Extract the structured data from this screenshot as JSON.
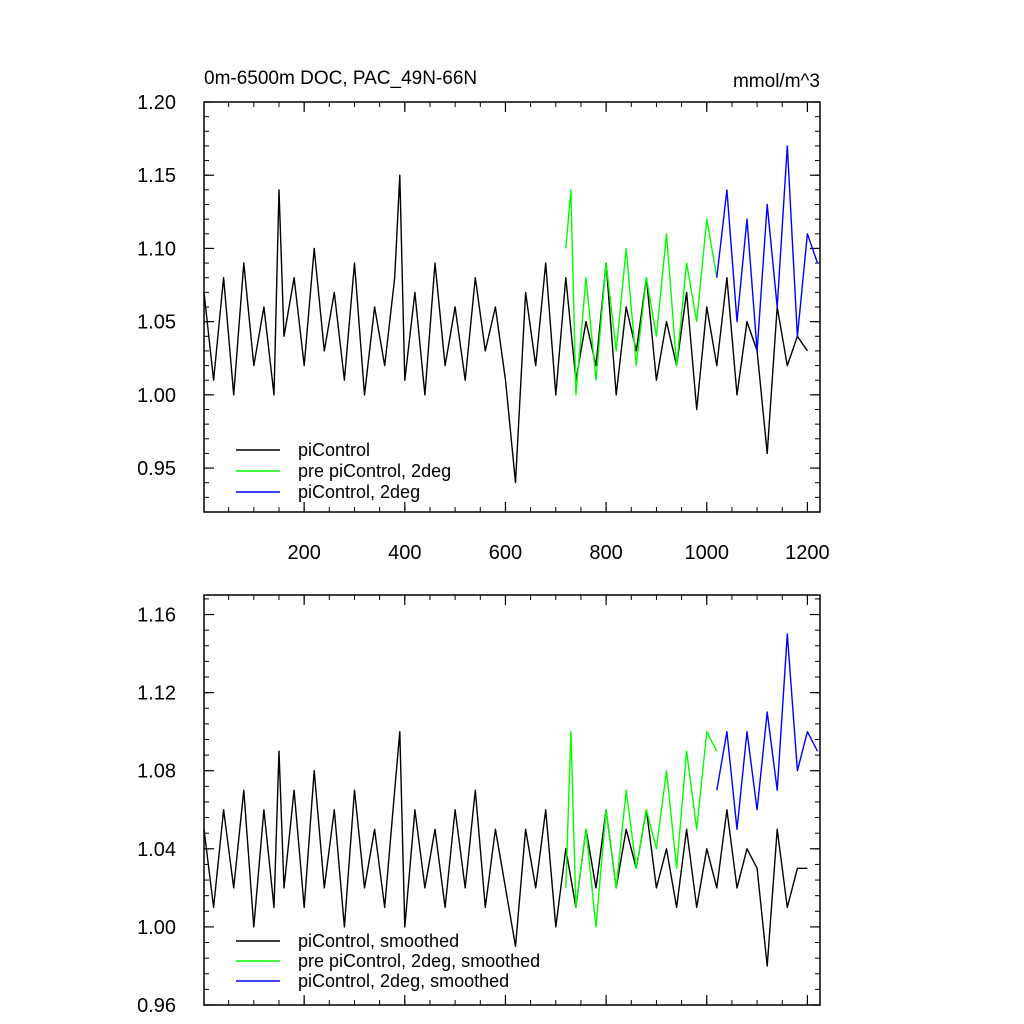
{
  "chart_data": [
    {
      "type": "line",
      "title": "0m-6500m DOC, PAC_49N-66N",
      "units": "mmol/m^3",
      "xlim": [
        1,
        1225
      ],
      "ylim": [
        0.92,
        1.2
      ],
      "xticks": [
        200,
        400,
        600,
        800,
        1000,
        1200
      ],
      "xtick_labels": [
        "200",
        "400",
        "600",
        "800",
        "1000",
        "1200"
      ],
      "yticks": [
        0.95,
        1.0,
        1.05,
        1.1,
        1.15,
        1.2
      ],
      "ytick_labels": [
        "0.95",
        "1.00",
        "1.05",
        "1.10",
        "1.15",
        "1.20"
      ],
      "legend_position": "bottom-left",
      "series": [
        {
          "name": "piControl",
          "color": "#000000",
          "x": [
            1,
            20,
            40,
            60,
            80,
            100,
            120,
            140,
            150,
            160,
            180,
            200,
            220,
            240,
            260,
            280,
            300,
            320,
            340,
            360,
            380,
            390,
            400,
            420,
            440,
            460,
            480,
            500,
            520,
            540,
            560,
            580,
            600,
            620,
            640,
            660,
            680,
            700,
            720,
            740,
            760,
            780,
            800,
            820,
            840,
            860,
            880,
            900,
            920,
            940,
            960,
            980,
            1000,
            1020,
            1040,
            1060,
            1080,
            1100,
            1120,
            1140,
            1160,
            1180,
            1200
          ],
          "y": [
            1.07,
            1.01,
            1.08,
            1.0,
            1.09,
            1.02,
            1.06,
            1.0,
            1.14,
            1.04,
            1.08,
            1.02,
            1.1,
            1.03,
            1.07,
            1.01,
            1.09,
            1.0,
            1.06,
            1.02,
            1.08,
            1.15,
            1.01,
            1.07,
            1.0,
            1.09,
            1.02,
            1.06,
            1.01,
            1.08,
            1.03,
            1.06,
            1.01,
            0.94,
            1.07,
            1.02,
            1.09,
            1.0,
            1.08,
            1.01,
            1.05,
            1.02,
            1.09,
            1.0,
            1.06,
            1.03,
            1.08,
            1.01,
            1.05,
            1.02,
            1.07,
            0.99,
            1.06,
            1.02,
            1.08,
            1.0,
            1.05,
            1.03,
            0.96,
            1.06,
            1.02,
            1.04,
            1.03
          ]
        },
        {
          "name": "pre piControl, 2deg",
          "color": "#00ff00",
          "x": [
            720,
            730,
            740,
            760,
            780,
            800,
            820,
            840,
            860,
            880,
            900,
            920,
            940,
            960,
            980,
            1000,
            1020
          ],
          "y": [
            1.1,
            1.14,
            1.0,
            1.08,
            1.01,
            1.09,
            1.03,
            1.1,
            1.02,
            1.08,
            1.04,
            1.11,
            1.02,
            1.09,
            1.05,
            1.12,
            1.08
          ]
        },
        {
          "name": "piControl, 2deg",
          "color": "#0000ff",
          "x": [
            1020,
            1040,
            1060,
            1080,
            1100,
            1120,
            1140,
            1160,
            1180,
            1200,
            1220
          ],
          "y": [
            1.08,
            1.14,
            1.05,
            1.12,
            1.03,
            1.13,
            1.06,
            1.17,
            1.04,
            1.11,
            1.09
          ]
        }
      ]
    },
    {
      "type": "line",
      "title": "",
      "xlim": [
        1,
        1225
      ],
      "ylim": [
        0.96,
        1.17
      ],
      "yticks": [
        0.96,
        1.0,
        1.04,
        1.08,
        1.12,
        1.16
      ],
      "ytick_labels": [
        "0.96",
        "1.00",
        "1.04",
        "1.08",
        "1.12",
        "1.16"
      ],
      "legend_position": "bottom-left",
      "series": [
        {
          "name": "piControl, smoothed",
          "color": "#000000",
          "x": [
            1,
            20,
            40,
            60,
            80,
            100,
            120,
            140,
            150,
            160,
            180,
            200,
            220,
            240,
            260,
            280,
            300,
            320,
            340,
            360,
            380,
            390,
            400,
            420,
            440,
            460,
            480,
            500,
            520,
            540,
            560,
            580,
            600,
            620,
            640,
            660,
            680,
            700,
            720,
            740,
            760,
            780,
            800,
            820,
            840,
            860,
            880,
            900,
            920,
            940,
            960,
            980,
            1000,
            1020,
            1040,
            1060,
            1080,
            1100,
            1120,
            1140,
            1160,
            1180,
            1200
          ],
          "y": [
            1.05,
            1.01,
            1.06,
            1.02,
            1.07,
            1.0,
            1.06,
            1.01,
            1.09,
            1.02,
            1.07,
            1.01,
            1.08,
            1.02,
            1.06,
            1.0,
            1.07,
            1.02,
            1.05,
            1.01,
            1.07,
            1.1,
            1.0,
            1.06,
            1.02,
            1.05,
            1.01,
            1.06,
            1.02,
            1.07,
            1.01,
            1.05,
            1.02,
            0.99,
            1.05,
            1.02,
            1.06,
            1.0,
            1.04,
            1.01,
            1.05,
            1.02,
            1.06,
            1.02,
            1.05,
            1.03,
            1.06,
            1.02,
            1.04,
            1.01,
            1.05,
            1.01,
            1.04,
            1.02,
            1.06,
            1.02,
            1.04,
            1.03,
            0.98,
            1.05,
            1.01,
            1.03,
            1.03
          ]
        },
        {
          "name": "pre piControl, 2deg, smoothed",
          "color": "#00ff00",
          "x": [
            720,
            730,
            740,
            760,
            780,
            800,
            820,
            840,
            860,
            880,
            900,
            920,
            940,
            960,
            980,
            1000,
            1020
          ],
          "y": [
            1.02,
            1.1,
            1.01,
            1.05,
            1.0,
            1.06,
            1.02,
            1.07,
            1.03,
            1.06,
            1.04,
            1.08,
            1.03,
            1.09,
            1.05,
            1.1,
            1.09
          ]
        },
        {
          "name": "piControl, 2deg, smoothed",
          "color": "#0000ff",
          "x": [
            1020,
            1040,
            1060,
            1080,
            1100,
            1120,
            1140,
            1160,
            1180,
            1200,
            1220
          ],
          "y": [
            1.07,
            1.1,
            1.05,
            1.1,
            1.06,
            1.11,
            1.07,
            1.15,
            1.08,
            1.1,
            1.09
          ]
        }
      ]
    }
  ]
}
